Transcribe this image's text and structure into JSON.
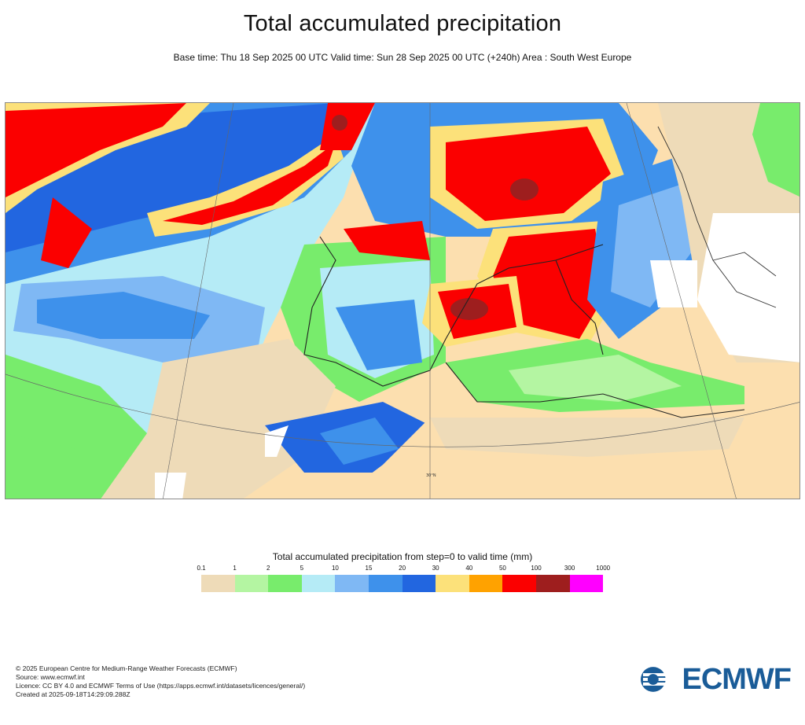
{
  "header": {
    "title": "Total accumulated precipitation",
    "subtitle": "Base time: Thu 18 Sep 2025 00 UTC Valid time: Sun 28 Sep 2025 00 UTC (+240h) Area : South West Europe"
  },
  "map": {
    "latitude_label": "30°N"
  },
  "legend": {
    "title": "Total accumulated precipitation from step=0 to valid time (mm)",
    "ticks": [
      "0.1",
      "1",
      "2",
      "5",
      "10",
      "15",
      "20",
      "30",
      "40",
      "50",
      "100",
      "300",
      "1000"
    ],
    "colors": [
      "#eedbb8",
      "#b4f5a2",
      "#78ec6c",
      "#b5ebf6",
      "#7fb8f4",
      "#3e91eb",
      "#2266e0",
      "#fce17a",
      "#ffa200",
      "#fb0000",
      "#9e1e1e",
      "#ff00ff"
    ]
  },
  "footer": {
    "lines": [
      "© 2025 European Centre for Medium-Range Weather Forecasts (ECMWF)",
      "Source: www.ecmwf.int",
      "Licence: CC BY 4.0 and ECMWF Terms of Use (https://apps.ecmwf.int/datasets/licences/general/)",
      "Created at 2025-09-18T14:29:09.288Z"
    ]
  },
  "logo": {
    "text": "ECMWF",
    "color": "#1a5c98"
  }
}
